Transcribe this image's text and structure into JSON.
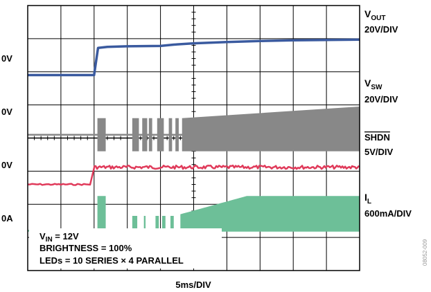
{
  "chart_data": {
    "type": "line",
    "title": "",
    "xlabel": "5ms/DIV",
    "grid": true,
    "x_divisions": 10,
    "y_divisions": 8,
    "side_note": "08052-009",
    "conditions": {
      "vin_prefix": "V",
      "vin_sub": "IN",
      "vin_value": " = 12V",
      "brightness": "BRIGHTNESS = 100%",
      "leds": "LEDs = 10 SERIES × 4 PARALLEL"
    },
    "ground_labels": [
      "0V",
      "0V",
      "0V",
      "0A"
    ],
    "series": [
      {
        "name": "V_OUT",
        "label_main": "V",
        "label_sub": "OUT",
        "scale": "20V/DIV",
        "color": "#3a5a9f",
        "ground_div": 1.0,
        "x_div": [
          0,
          2.0,
          2.05,
          2.12,
          2.4,
          3.0,
          4.0,
          4.4,
          5.0,
          6.0,
          7.0,
          8.0,
          9.0,
          10.0
        ],
        "y_div": [
          1.9,
          1.9,
          2.25,
          2.72,
          2.75,
          2.77,
          2.78,
          2.82,
          2.86,
          2.9,
          2.93,
          2.95,
          2.96,
          2.97
        ]
      },
      {
        "name": "V_SW",
        "label_main": "V",
        "label_sub": "SW",
        "scale": "20V/DIV",
        "color": "#888888",
        "ground_div": 0.1,
        "low_div": -0.4,
        "high_div_start": 0.6,
        "high_div_end": 0.95,
        "switching_bursts_div": [
          [
            2.1,
            2.35
          ],
          [
            3.15,
            3.35
          ],
          [
            3.45,
            3.6
          ],
          [
            3.65,
            3.75
          ],
          [
            3.9,
            4.1
          ],
          [
            4.25,
            4.35
          ],
          [
            4.45,
            4.55
          ],
          [
            4.65,
            10.0
          ]
        ]
      },
      {
        "name": "SHDN",
        "label_main": "SHDN",
        "label_overline": true,
        "scale": "5V/DIV",
        "color": "#e03a5a",
        "ground_div": -1.4,
        "high_div": -0.88,
        "step_div": 1.88
      },
      {
        "name": "I_L",
        "label_main": "I",
        "label_sub": "L",
        "scale": "600mA/DIV",
        "color": "#6dbf98",
        "ground_div": -2.8,
        "peak_div_start": -2.3,
        "peak_div_end": -1.75,
        "switching_bursts_div": [
          [
            2.1,
            2.35
          ],
          [
            3.15,
            3.3
          ],
          [
            3.5,
            3.55
          ],
          [
            3.85,
            3.95
          ],
          [
            4.05,
            4.15
          ],
          [
            4.3,
            4.4
          ],
          [
            4.6,
            10.0
          ]
        ]
      }
    ]
  }
}
